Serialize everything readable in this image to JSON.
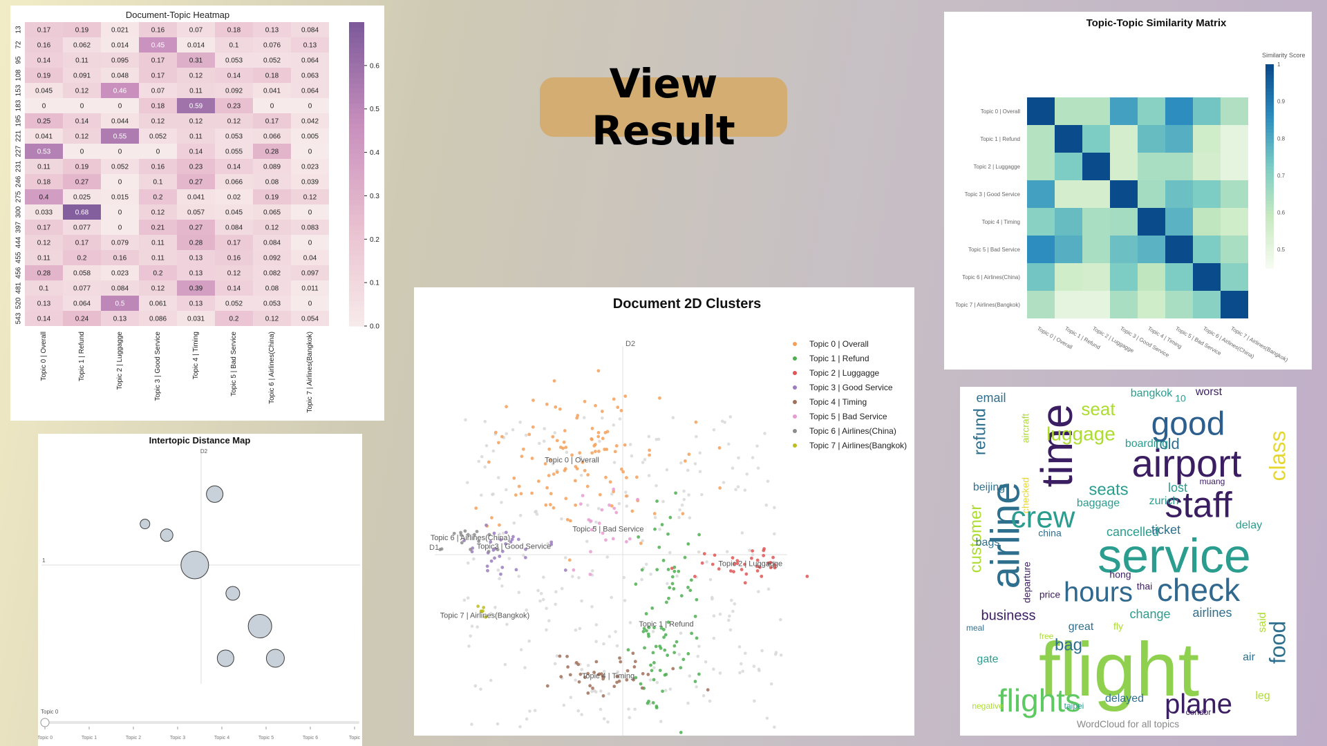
{
  "view_result_label": "View Result",
  "charts": {
    "heatmap": {
      "title": "Document-Topic Heatmap",
      "colorbar_ticks": [
        "0.0",
        "0.1",
        "0.2",
        "0.3",
        "0.4",
        "0.5",
        "0.6"
      ]
    },
    "intertopic": {
      "title": "Intertopic Distance Map",
      "axis_d2": "D2",
      "axis_d1": "1",
      "slider_label": "Topic 0",
      "slider_ticks": [
        "Topic 0",
        "Topic 1",
        "Topic 2",
        "Topic 3",
        "Topic 4",
        "Topic 5",
        "Topic 6",
        "Topic"
      ]
    },
    "clusters": {
      "title": "Document 2D Clusters",
      "axis_d2": "D2",
      "axis_d1": "D1"
    },
    "similarity": {
      "title": "Topic-Topic Similarity Matrix",
      "colorbar_title": "Similarity Score",
      "colorbar_ticks": [
        "0.5",
        "0.6",
        "0.7",
        "0.8",
        "0.9",
        "1"
      ]
    },
    "wordcloud": {
      "caption": "WordCloud for all topics"
    }
  },
  "colors": {
    "topic_palette": [
      "#f5a05a",
      "#4caf50",
      "#e05555",
      "#9b7cc0",
      "#a0705a",
      "#e79bd0",
      "#8c8c8c",
      "#bcbd22"
    ],
    "heat_low": "#f7eaea",
    "heat_high": "#7e5a9b",
    "sim_low": "#f5fbf0",
    "sim_high": "#0a4b8c"
  },
  "chart_data": [
    {
      "type": "heatmap",
      "title": "Document-Topic Heatmap",
      "rows": [
        "13",
        "72",
        "95",
        "108",
        "153",
        "183",
        "195",
        "221",
        "227",
        "231",
        "246",
        "275",
        "300",
        "397",
        "444",
        "455",
        "456",
        "481",
        "520",
        "543"
      ],
      "row_labels": [
        "13",
        "72",
        "95",
        "108",
        "153",
        "183",
        "195",
        "221",
        "227",
        "231",
        "246",
        "275",
        "300",
        "397",
        "444",
        "455",
        "456",
        "481",
        "520",
        "543"
      ],
      "columns": [
        "Topic 0 | Overall",
        "Topic 1 | Refund",
        "Topic 2 | Luggagge",
        "Topic 3 | Good Service",
        "Topic 4 | Timing",
        "Topic 5 | Bad Service",
        "Topic 6 | Airlines(China)",
        "Topic 7 | Airlines(Bangkok)"
      ],
      "cells": [
        [
          "0.17",
          "0.19",
          "0.021",
          "0.16",
          "0.07",
          "0.18",
          "0.13",
          "0.084"
        ],
        [
          "0.16",
          "0.062",
          "0.014",
          "0.45",
          "0.014",
          "0.1",
          "0.076",
          "0.13"
        ],
        [
          "0.14",
          "0.11",
          "0.095",
          "0.17",
          "0.31",
          "0.053",
          "0.052",
          "0.064"
        ],
        [
          "0.19",
          "0.091",
          "0.048",
          "0.17",
          "0.12",
          "0.14",
          "0.18",
          "0.063"
        ],
        [
          "0.045",
          "0.12",
          "0.46",
          "0.07",
          "0.11",
          "0.092",
          "0.041",
          "0.064"
        ],
        [
          "0",
          "0",
          "0",
          "0.18",
          "0.59",
          "0.23",
          "0",
          "0"
        ],
        [
          "0.25",
          "0.14",
          "0.044",
          "0.12",
          "0.12",
          "0.12",
          "0.17",
          "0.042"
        ],
        [
          "0.041",
          "0.12",
          "0.55",
          "0.052",
          "0.11",
          "0.053",
          "0.066",
          "0.005"
        ],
        [
          "0.53",
          "0",
          "0",
          "0",
          "0.14",
          "0.055",
          "0.28",
          "0"
        ],
        [
          "0.11",
          "0.19",
          "0.052",
          "0.16",
          "0.23",
          "0.14",
          "0.089",
          "0.023"
        ],
        [
          "0.18",
          "0.27",
          "0",
          "0.1",
          "0.27",
          "0.066",
          "0.08",
          "0.039"
        ],
        [
          "0.4",
          "0.025",
          "0.015",
          "0.2",
          "0.041",
          "0.02",
          "0.19",
          "0.12"
        ],
        [
          "0.033",
          "0.68",
          "0",
          "0.12",
          "0.057",
          "0.045",
          "0.065",
          "0"
        ],
        [
          "0.17",
          "0.077",
          "0",
          "0.21",
          "0.27",
          "0.084",
          "0.12",
          "0.083"
        ],
        [
          "0.12",
          "0.17",
          "0.079",
          "0.11",
          "0.28",
          "0.17",
          "0.084",
          "0"
        ],
        [
          "0.11",
          "0.2",
          "0.16",
          "0.11",
          "0.13",
          "0.16",
          "0.092",
          "0.04"
        ],
        [
          "0.28",
          "0.058",
          "0.023",
          "0.2",
          "0.13",
          "0.12",
          "0.082",
          "0.097"
        ],
        [
          "0.1",
          "0.077",
          "0.084",
          "0.12",
          "0.39",
          "0.14",
          "0.08",
          "0.011"
        ],
        [
          "0.13",
          "0.064",
          "0.5",
          "0.061",
          "0.13",
          "0.052",
          "0.053",
          "0"
        ],
        [
          "0.14",
          "0.24",
          "0.13",
          "0.086",
          "0.031",
          "0.2",
          "0.12",
          "0.054"
        ]
      ],
      "vmin": 0,
      "vmax": 0.7
    },
    {
      "type": "scatter",
      "title": "Intertopic Distance Map",
      "xlabel": "1",
      "ylabel": "D2",
      "points": [
        {
          "x": 0.15,
          "y": 0.95,
          "size": 12
        },
        {
          "x": -0.62,
          "y": 0.55,
          "size": 7
        },
        {
          "x": -0.38,
          "y": 0.4,
          "size": 9
        },
        {
          "x": -0.07,
          "y": 0.0,
          "size": 20
        },
        {
          "x": 0.35,
          "y": -0.38,
          "size": 10
        },
        {
          "x": 0.65,
          "y": -0.82,
          "size": 17
        },
        {
          "x": 0.27,
          "y": -1.25,
          "size": 12
        },
        {
          "x": 0.82,
          "y": -1.25,
          "size": 13
        }
      ]
    },
    {
      "type": "scatter",
      "title": "Document 2D Clusters",
      "xlabel": "D1",
      "ylabel": "D2",
      "series": [
        {
          "name": "Topic 0 | Overall",
          "label_text": "Topic 0 | Overall",
          "cx": -0.35,
          "cy": 0.55,
          "sx": 0.33,
          "sy": 0.22,
          "n": 110
        },
        {
          "name": "Topic 1 | Refund",
          "label_text": "Topic 1 | Refund",
          "cx": 0.3,
          "cy": -0.4,
          "sx": 0.12,
          "sy": 0.3,
          "n": 80
        },
        {
          "name": "Topic 2 | Luggagge",
          "label_text": "Topic 2 | Luggagge",
          "cx": 0.88,
          "cy": -0.05,
          "sx": 0.18,
          "sy": 0.05,
          "n": 35
        },
        {
          "name": "Topic 3 | Good Service",
          "label_text": "Topic3 | Good Service",
          "cx": -0.75,
          "cy": 0.05,
          "sx": 0.2,
          "sy": 0.08,
          "n": 30
        },
        {
          "name": "Topic 4 | Timing",
          "label_text": "Topic 4 | Timing",
          "cx": -0.1,
          "cy": -0.7,
          "sx": 0.22,
          "sy": 0.06,
          "n": 40
        },
        {
          "name": "Topic 5 | Bad Service",
          "label_text": "Topic 5 | Bad Service",
          "cx": -0.1,
          "cy": 0.15,
          "sx": 0.12,
          "sy": 0.12,
          "n": 20
        },
        {
          "name": "Topic 6 | Airlines(China)",
          "label_text": "Topic 6 | Airlines(China)",
          "cx": -1.05,
          "cy": 0.1,
          "sx": 0.15,
          "sy": 0.05,
          "n": 15
        },
        {
          "name": "Topic 7 | Airlines(Bangkok)",
          "label_text": "Topic 7 | Airlines(Bangkok)",
          "cx": -0.95,
          "cy": -0.35,
          "sx": 0.03,
          "sy": 0.03,
          "n": 6
        }
      ],
      "background_points": 260
    },
    {
      "type": "heatmap",
      "title": "Topic-Topic Similarity Matrix",
      "labels": [
        "Topic 0 | Overall",
        "Topic 1 | Refund",
        "Topic 2 | Luggagge",
        "Topic 3 | Good Service",
        "Topic 4 | Timing",
        "Topic 5 | Bad Service",
        "Topic 6 | Airlines(China)",
        "Topic 7 | Airlines(Bangkok)"
      ],
      "matrix": [
        [
          1.0,
          0.62,
          0.62,
          0.82,
          0.7,
          0.86,
          0.74,
          0.63
        ],
        [
          0.62,
          1.0,
          0.72,
          0.55,
          0.76,
          0.79,
          0.56,
          0.5
        ],
        [
          0.62,
          0.72,
          1.0,
          0.55,
          0.64,
          0.64,
          0.55,
          0.5
        ],
        [
          0.82,
          0.55,
          0.55,
          1.0,
          0.65,
          0.75,
          0.72,
          0.64
        ],
        [
          0.7,
          0.76,
          0.64,
          0.65,
          1.0,
          0.78,
          0.6,
          0.56
        ],
        [
          0.86,
          0.79,
          0.64,
          0.75,
          0.78,
          1.0,
          0.72,
          0.64
        ],
        [
          0.74,
          0.56,
          0.55,
          0.72,
          0.6,
          0.72,
          1.0,
          0.7
        ],
        [
          0.63,
          0.5,
          0.5,
          0.64,
          0.56,
          0.64,
          0.7,
          1.0
        ]
      ],
      "vmin": 0.45,
      "vmax": 1.0
    },
    {
      "type": "wordcloud",
      "words": [
        {
          "text": "service",
          "size": 70,
          "color": "#2a9d8f"
        },
        {
          "text": "flight",
          "size": 110,
          "color": "#8fd14f"
        },
        {
          "text": "airport",
          "size": 56,
          "color": "#3b1d61"
        },
        {
          "text": "airline",
          "size": 58,
          "color": "#2e6f8e",
          "vertical": true
        },
        {
          "text": "time",
          "size": 64,
          "color": "#3b1d61",
          "vertical": true
        },
        {
          "text": "staff",
          "size": 52,
          "color": "#3b1d61"
        },
        {
          "text": "good",
          "size": 48,
          "color": "#2d5f8e"
        },
        {
          "text": "crew",
          "size": 44,
          "color": "#2a9d8f"
        },
        {
          "text": "check",
          "size": 46,
          "color": "#31688e"
        },
        {
          "text": "hours",
          "size": 40,
          "color": "#31688e"
        },
        {
          "text": "flights",
          "size": 46,
          "color": "#5ec962"
        },
        {
          "text": "plane",
          "size": 40,
          "color": "#3b1d61"
        },
        {
          "text": "class",
          "size": 32,
          "color": "#e6d730",
          "vertical": true
        },
        {
          "text": "food",
          "size": 32,
          "color": "#2e6f8e",
          "vertical": true
        },
        {
          "text": "luggage",
          "size": 28,
          "color": "#addc30"
        },
        {
          "text": "seat",
          "size": 26,
          "color": "#addc30"
        },
        {
          "text": "seats",
          "size": 24,
          "color": "#2a9d8f"
        },
        {
          "text": "refund",
          "size": 24,
          "color": "#2e6f8e",
          "vertical": true
        },
        {
          "text": "customer",
          "size": 24,
          "color": "#addc30",
          "vertical": true
        },
        {
          "text": "bag",
          "size": 24,
          "color": "#2e6f8e"
        },
        {
          "text": "told",
          "size": 22,
          "color": "#2e6f8e"
        },
        {
          "text": "lost",
          "size": 18,
          "color": "#2a9d8f"
        },
        {
          "text": "business",
          "size": 20,
          "color": "#3b1d61"
        },
        {
          "text": "cancelled",
          "size": 18,
          "color": "#2a9d8f"
        },
        {
          "text": "ticket",
          "size": 18,
          "color": "#2e6f8e"
        },
        {
          "text": "baggage",
          "size": 16,
          "color": "#2a9d8f"
        },
        {
          "text": "boarding",
          "size": 16,
          "color": "#2a9d8f"
        },
        {
          "text": "email",
          "size": 18,
          "color": "#2e6f8e"
        },
        {
          "text": "bangkok",
          "size": 16,
          "color": "#2a9d8f"
        },
        {
          "text": "worst",
          "size": 16,
          "color": "#3b1d61"
        },
        {
          "text": "10",
          "size": 14,
          "color": "#2a9d8f"
        },
        {
          "text": "aircraft",
          "size": 14,
          "color": "#addc30",
          "vertical": true
        },
        {
          "text": "zurich",
          "size": 16,
          "color": "#2a9d8f"
        },
        {
          "text": "muang",
          "size": 12,
          "color": "#3b1d61"
        },
        {
          "text": "beijing",
          "size": 16,
          "color": "#2e6f8e"
        },
        {
          "text": "checked",
          "size": 14,
          "color": "#e6d730",
          "vertical": true
        },
        {
          "text": "china",
          "size": 14,
          "color": "#2e6f8e"
        },
        {
          "text": "delay",
          "size": 16,
          "color": "#2a9d8f"
        },
        {
          "text": "bags",
          "size": 16,
          "color": "#2e6f8e"
        },
        {
          "text": "departure",
          "size": 14,
          "color": "#3b1d61",
          "vertical": true
        },
        {
          "text": "hong",
          "size": 14,
          "color": "#3b1d61"
        },
        {
          "text": "thai",
          "size": 14,
          "color": "#3b1d61"
        },
        {
          "text": "price",
          "size": 14,
          "color": "#3b1d61"
        },
        {
          "text": "change",
          "size": 18,
          "color": "#2a9d8f"
        },
        {
          "text": "great",
          "size": 16,
          "color": "#2e6f8e"
        },
        {
          "text": "fly",
          "size": 14,
          "color": "#addc30"
        },
        {
          "text": "airlines",
          "size": 18,
          "color": "#2e6f8e"
        },
        {
          "text": "said",
          "size": 16,
          "color": "#addc30",
          "vertical": true
        },
        {
          "text": "meal",
          "size": 12,
          "color": "#2e6f8e"
        },
        {
          "text": "free",
          "size": 12,
          "color": "#addc30"
        },
        {
          "text": "gate",
          "size": 16,
          "color": "#2a9d8f"
        },
        {
          "text": "air",
          "size": 16,
          "color": "#2e6f8e"
        },
        {
          "text": "delayed",
          "size": 16,
          "color": "#2e6f8e"
        },
        {
          "text": "negative",
          "size": 12,
          "color": "#addc30"
        },
        {
          "text": "taipei",
          "size": 12,
          "color": "#2a9d8f"
        },
        {
          "text": "condor",
          "size": 12,
          "color": "#3b1d61"
        },
        {
          "text": "leg",
          "size": 16,
          "color": "#addc30"
        }
      ]
    }
  ]
}
